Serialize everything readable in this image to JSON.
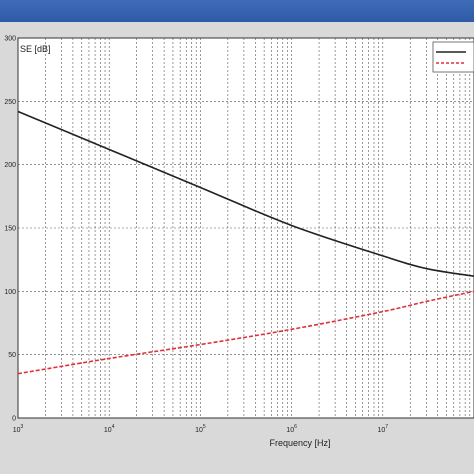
{
  "window": {
    "title": ""
  },
  "chart_data": {
    "type": "line",
    "title": "",
    "xlabel": "Frequency [Hz]",
    "ylabel": "SE [dB]",
    "xscale": "log",
    "xlim": [
      1000,
      100000000
    ],
    "ylim": [
      0,
      300
    ],
    "grid": true,
    "legend_position": "top-right",
    "x_ticks": [
      {
        "value": 1000,
        "base": "10",
        "exp": "3"
      },
      {
        "value": 10000,
        "base": "10",
        "exp": "4"
      },
      {
        "value": 100000,
        "base": "10",
        "exp": "5"
      },
      {
        "value": 1000000,
        "base": "10",
        "exp": "6"
      },
      {
        "value": 10000000,
        "base": "10",
        "exp": "7"
      }
    ],
    "y_ticks": [
      "0",
      "50",
      "100",
      "150",
      "200",
      "250",
      "300"
    ],
    "x": [
      1000,
      10000,
      100000,
      1000000,
      10000000,
      30000000,
      100000000
    ],
    "series": [
      {
        "name": "",
        "color": "#222222",
        "dash": "solid",
        "values": [
          242,
          212,
          182,
          152,
          128,
          118,
          112
        ]
      },
      {
        "name": "",
        "color": "#e0303a",
        "dash": "dashed",
        "values": [
          35,
          47,
          58,
          70,
          84,
          92,
          100
        ]
      }
    ]
  }
}
